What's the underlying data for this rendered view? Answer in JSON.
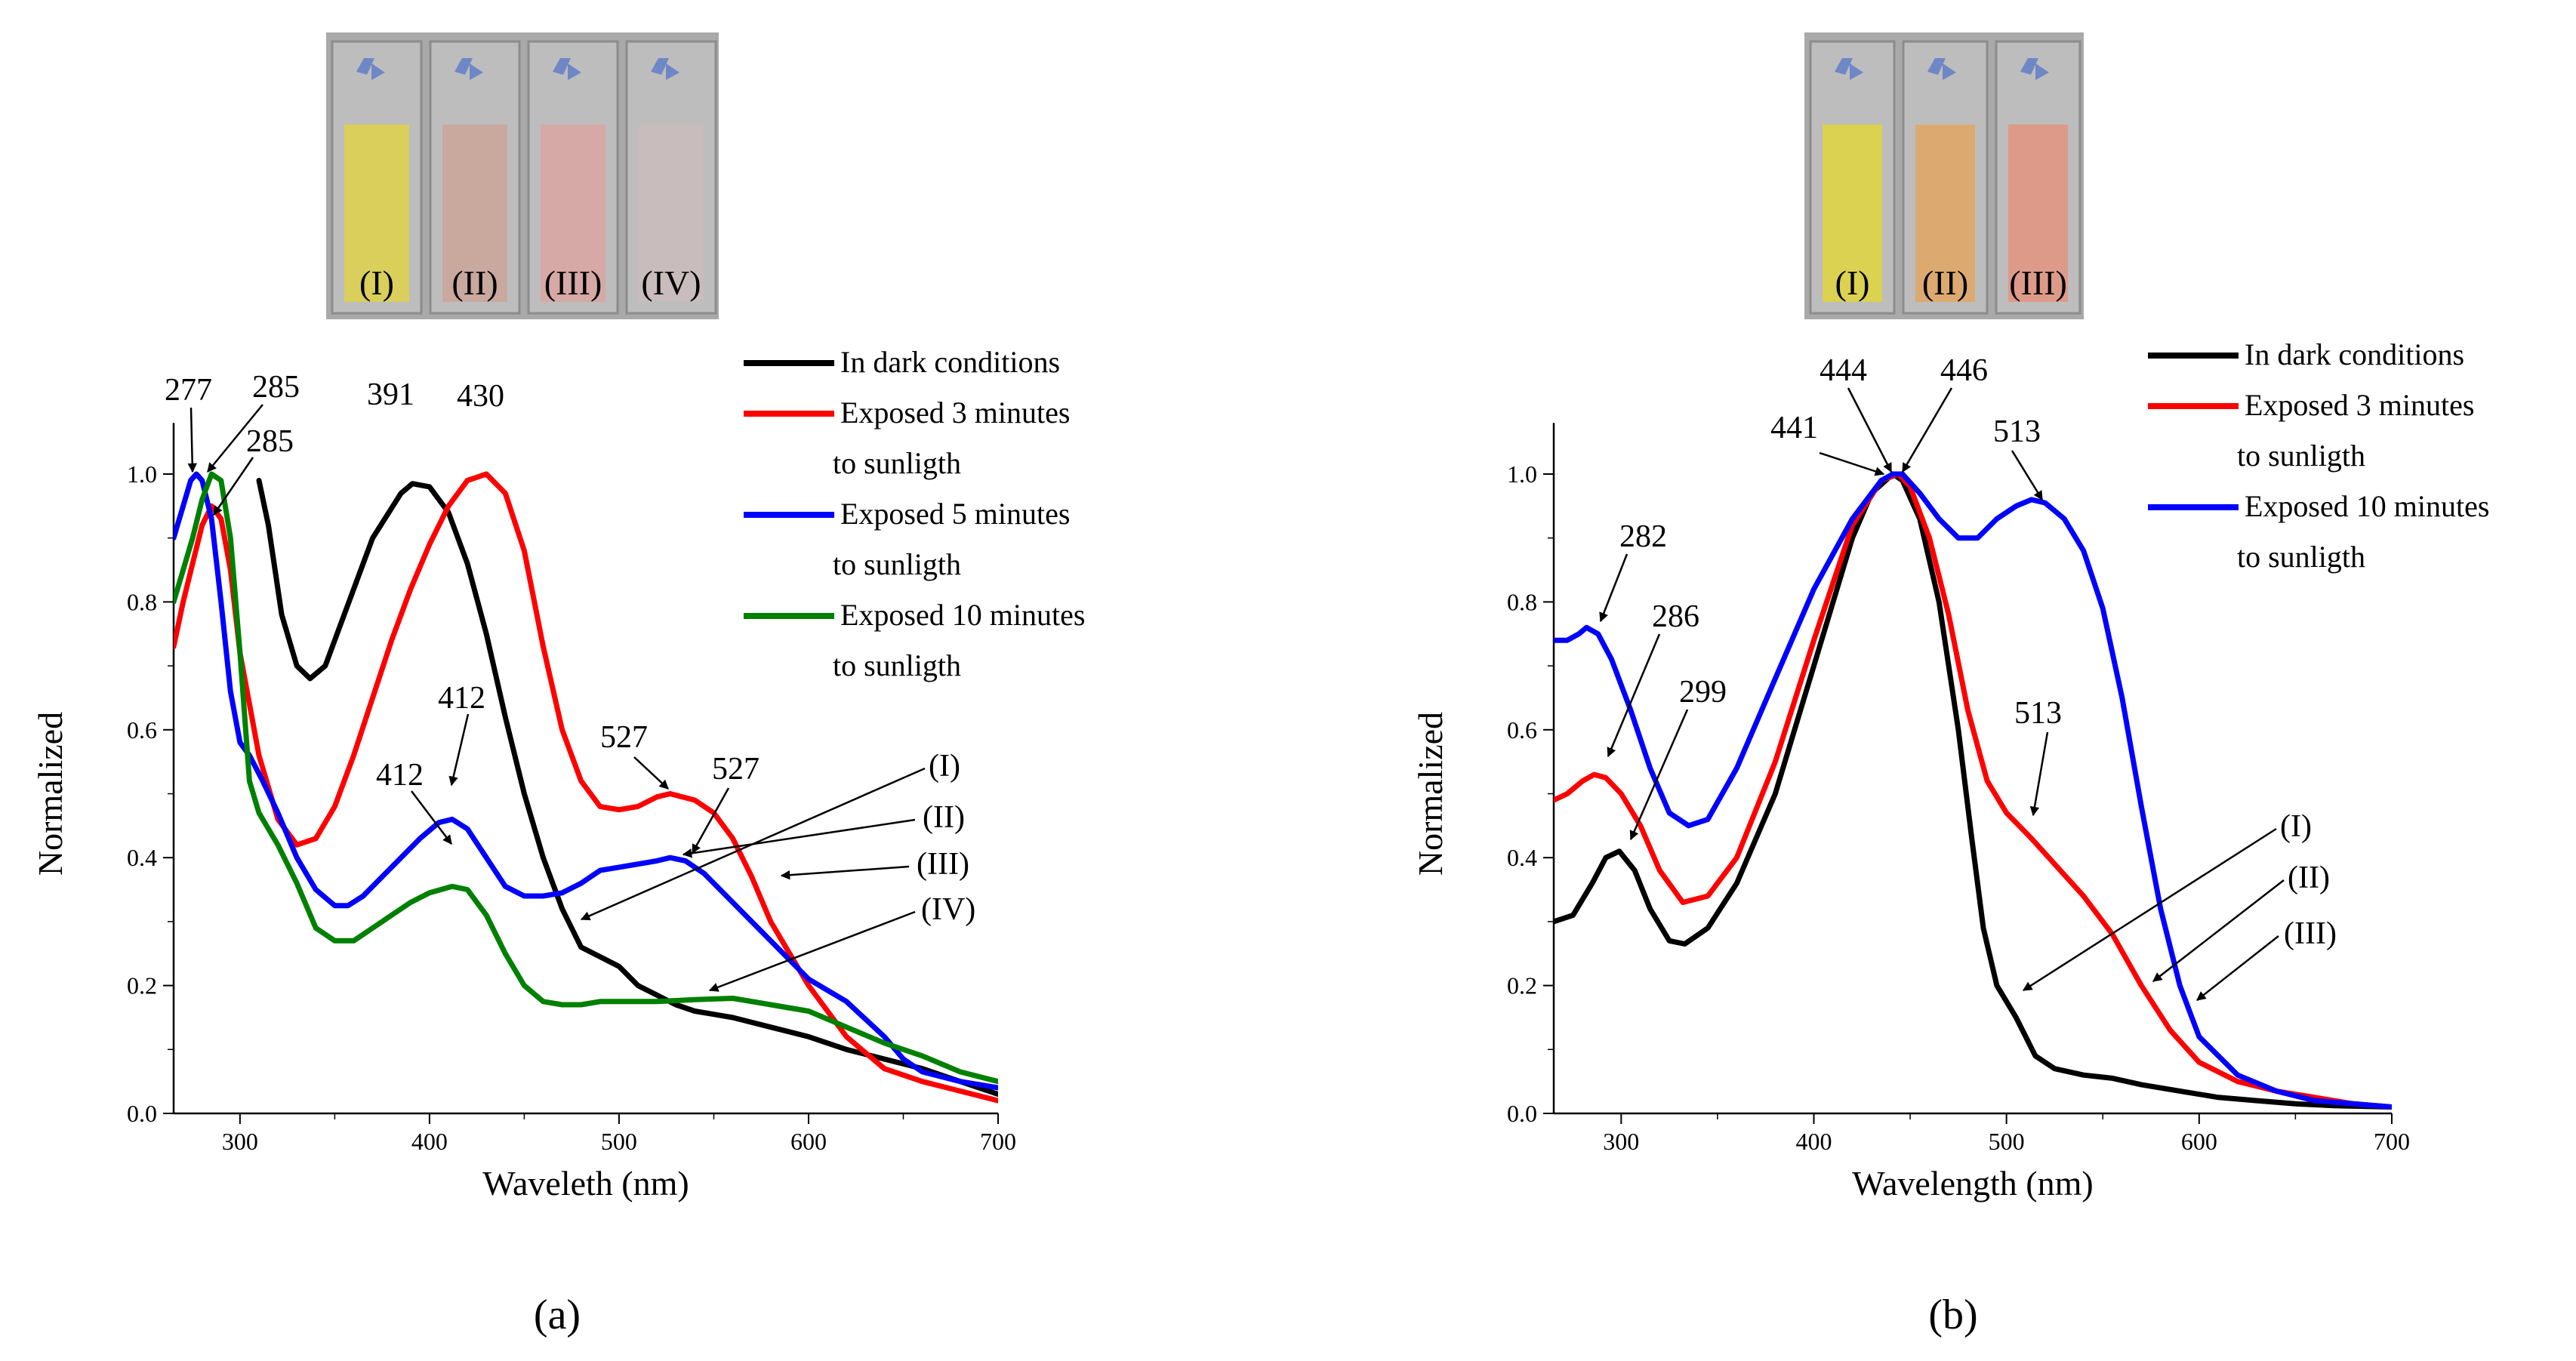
{
  "chart_data": [
    {
      "type": "line",
      "panel_label": "(a)",
      "xlabel": "Waveleth (nm)",
      "ylabel": "Normalized",
      "xlim": [
        265,
        700
      ],
      "ylim": [
        0,
        1.0
      ],
      "x_ticks": [
        300,
        400,
        500,
        600,
        700
      ],
      "y_ticks": [
        "0.0",
        "0.2",
        "0.4",
        "0.6",
        "0.8",
        "1.0"
      ],
      "grid": false,
      "legend_position": "top-right",
      "photo_labels": [
        "(I)",
        "(II)",
        "(III)",
        "(IV)"
      ],
      "photo_colors": [
        "#d9cf5a",
        "#c9a89e",
        "#d6a8a6",
        "#c8bcbc"
      ],
      "legend": [
        {
          "lines": [
            "In dark conditions"
          ],
          "color": "#000000"
        },
        {
          "lines": [
            "Exposed 3 minutes",
            "to sunligth"
          ],
          "color": "#ff0000"
        },
        {
          "lines": [
            "Exposed 5 minutes",
            "to sunligth"
          ],
          "color": "#0000ff"
        },
        {
          "lines": [
            "Exposed 10 minutes",
            "to sunligth"
          ],
          "color": "#008000"
        }
      ],
      "series": [
        {
          "color": "#000000",
          "x": [
            310,
            315,
            322,
            330,
            337,
            345,
            355,
            370,
            385,
            391,
            400,
            410,
            420,
            430,
            440,
            450,
            460,
            470,
            480,
            490,
            500,
            510,
            520,
            530,
            540,
            550,
            560,
            580,
            600,
            620,
            640,
            660,
            680,
            700
          ],
          "y": [
            0.99,
            0.92,
            0.78,
            0.7,
            0.68,
            0.7,
            0.78,
            0.9,
            0.97,
            0.985,
            0.98,
            0.94,
            0.86,
            0.75,
            0.62,
            0.5,
            0.4,
            0.32,
            0.26,
            0.245,
            0.23,
            0.2,
            0.185,
            0.17,
            0.16,
            0.155,
            0.15,
            0.135,
            0.12,
            0.1,
            0.085,
            0.07,
            0.05,
            0.03
          ]
        },
        {
          "color": "#ff0000",
          "x": [
            265,
            270,
            275,
            280,
            285,
            290,
            295,
            300,
            310,
            320,
            330,
            340,
            350,
            360,
            370,
            380,
            390,
            400,
            410,
            420,
            430,
            440,
            450,
            460,
            470,
            480,
            490,
            500,
            510,
            520,
            527,
            540,
            550,
            560,
            570,
            580,
            590,
            600,
            620,
            640,
            660,
            680,
            700
          ],
          "y": [
            0.73,
            0.8,
            0.86,
            0.92,
            0.95,
            0.93,
            0.85,
            0.72,
            0.56,
            0.46,
            0.42,
            0.43,
            0.48,
            0.56,
            0.65,
            0.74,
            0.82,
            0.89,
            0.95,
            0.99,
            1.0,
            0.97,
            0.88,
            0.73,
            0.6,
            0.52,
            0.48,
            0.475,
            0.48,
            0.495,
            0.5,
            0.49,
            0.47,
            0.43,
            0.37,
            0.3,
            0.25,
            0.2,
            0.12,
            0.07,
            0.05,
            0.035,
            0.02
          ]
        },
        {
          "color": "#0000ff",
          "x": [
            265,
            270,
            274,
            277,
            280,
            285,
            290,
            295,
            300,
            305,
            312,
            320,
            330,
            340,
            350,
            357,
            365,
            375,
            385,
            395,
            405,
            412,
            420,
            430,
            440,
            450,
            460,
            470,
            480,
            490,
            500,
            510,
            520,
            527,
            535,
            545,
            555,
            565,
            580,
            600,
            620,
            640,
            650,
            660,
            680,
            700
          ],
          "y": [
            0.9,
            0.95,
            0.99,
            1.0,
            0.99,
            0.93,
            0.8,
            0.66,
            0.58,
            0.56,
            0.52,
            0.47,
            0.4,
            0.35,
            0.325,
            0.325,
            0.34,
            0.37,
            0.4,
            0.43,
            0.455,
            0.46,
            0.445,
            0.4,
            0.355,
            0.34,
            0.34,
            0.345,
            0.36,
            0.38,
            0.385,
            0.39,
            0.395,
            0.4,
            0.395,
            0.375,
            0.345,
            0.315,
            0.27,
            0.21,
            0.175,
            0.12,
            0.085,
            0.065,
            0.05,
            0.04
          ]
        },
        {
          "color": "#008000",
          "x": [
            265,
            270,
            275,
            280,
            285,
            290,
            295,
            300,
            305,
            310,
            320,
            330,
            340,
            350,
            360,
            370,
            380,
            390,
            400,
            412,
            420,
            430,
            440,
            450,
            460,
            470,
            480,
            490,
            500,
            520,
            540,
            560,
            580,
            600,
            620,
            640,
            660,
            680,
            700
          ],
          "y": [
            0.8,
            0.85,
            0.9,
            0.96,
            1.0,
            0.99,
            0.9,
            0.72,
            0.52,
            0.47,
            0.42,
            0.36,
            0.29,
            0.27,
            0.27,
            0.29,
            0.31,
            0.33,
            0.345,
            0.355,
            0.35,
            0.31,
            0.25,
            0.2,
            0.175,
            0.17,
            0.17,
            0.175,
            0.175,
            0.175,
            0.178,
            0.18,
            0.17,
            0.16,
            0.135,
            0.11,
            0.09,
            0.065,
            0.05
          ]
        }
      ],
      "peak_labels": [
        "277",
        "285",
        "285",
        "391",
        "430",
        "412",
        "412",
        "527",
        "527"
      ],
      "curve_labels": [
        "(I)",
        "(II)",
        "(III)",
        "(IV)"
      ]
    },
    {
      "type": "line",
      "panel_label": "(b)",
      "xlabel": "Wavelength (nm)",
      "ylabel": "Normalized",
      "xlim": [
        265,
        700
      ],
      "ylim": [
        0,
        1.0
      ],
      "x_ticks": [
        300,
        400,
        500,
        600,
        700
      ],
      "y_ticks": [
        "0.0",
        "0.2",
        "0.4",
        "0.6",
        "0.8",
        "1.0"
      ],
      "grid": false,
      "legend_position": "top-right",
      "photo_labels": [
        "(I)",
        "(II)",
        "(III)"
      ],
      "photo_colors": [
        "#dad250",
        "#dcaa70",
        "#de9a88"
      ],
      "legend": [
        {
          "lines": [
            "In dark conditions"
          ],
          "color": "#000000"
        },
        {
          "lines": [
            "Exposed 3 minutes",
            "to sunligth"
          ],
          "color": "#ff0000"
        },
        {
          "lines": [
            "Exposed 10 minutes",
            "to sunligth"
          ],
          "color": "#0000ff"
        }
      ],
      "series": [
        {
          "color": "#000000",
          "x": [
            265,
            275,
            285,
            292,
            299,
            307,
            315,
            325,
            333,
            345,
            360,
            380,
            400,
            420,
            430,
            441,
            446,
            455,
            465,
            475,
            482,
            488,
            495,
            505,
            515,
            525,
            540,
            555,
            570,
            590,
            610,
            630,
            650,
            670,
            700
          ],
          "y": [
            0.3,
            0.31,
            0.36,
            0.4,
            0.41,
            0.38,
            0.32,
            0.27,
            0.265,
            0.29,
            0.36,
            0.5,
            0.7,
            0.9,
            0.97,
            1.0,
            0.99,
            0.93,
            0.8,
            0.6,
            0.43,
            0.29,
            0.2,
            0.15,
            0.09,
            0.07,
            0.06,
            0.055,
            0.045,
            0.035,
            0.025,
            0.02,
            0.015,
            0.012,
            0.01
          ]
        },
        {
          "color": "#ff0000",
          "x": [
            265,
            272,
            280,
            286,
            292,
            300,
            310,
            320,
            332,
            345,
            360,
            380,
            400,
            420,
            435,
            444,
            450,
            460,
            470,
            480,
            490,
            500,
            513,
            525,
            540,
            555,
            570,
            585,
            600,
            620,
            640,
            660,
            680,
            700
          ],
          "y": [
            0.49,
            0.5,
            0.52,
            0.53,
            0.525,
            0.5,
            0.45,
            0.38,
            0.33,
            0.34,
            0.4,
            0.55,
            0.74,
            0.92,
            0.99,
            1.0,
            0.98,
            0.9,
            0.78,
            0.63,
            0.52,
            0.47,
            0.43,
            0.39,
            0.34,
            0.28,
            0.2,
            0.13,
            0.08,
            0.05,
            0.035,
            0.025,
            0.015,
            0.01
          ]
        },
        {
          "color": "#0000ff",
          "x": [
            265,
            272,
            278,
            282,
            288,
            295,
            305,
            315,
            325,
            335,
            345,
            360,
            380,
            400,
            420,
            435,
            441,
            446,
            455,
            465,
            475,
            485,
            495,
            505,
            513,
            520,
            530,
            540,
            550,
            560,
            570,
            580,
            590,
            600,
            620,
            640,
            660,
            680,
            700
          ],
          "y": [
            0.74,
            0.74,
            0.75,
            0.76,
            0.75,
            0.71,
            0.63,
            0.54,
            0.47,
            0.45,
            0.46,
            0.54,
            0.68,
            0.82,
            0.93,
            0.99,
            1.0,
            1.0,
            0.97,
            0.93,
            0.9,
            0.9,
            0.93,
            0.95,
            0.96,
            0.955,
            0.93,
            0.88,
            0.79,
            0.65,
            0.48,
            0.32,
            0.2,
            0.12,
            0.06,
            0.035,
            0.02,
            0.015,
            0.01
          ]
        }
      ],
      "peak_labels": [
        "282",
        "286",
        "299",
        "441",
        "444",
        "446",
        "513",
        "513"
      ],
      "curve_labels": [
        "(I)",
        "(II)",
        "(III)"
      ]
    }
  ]
}
